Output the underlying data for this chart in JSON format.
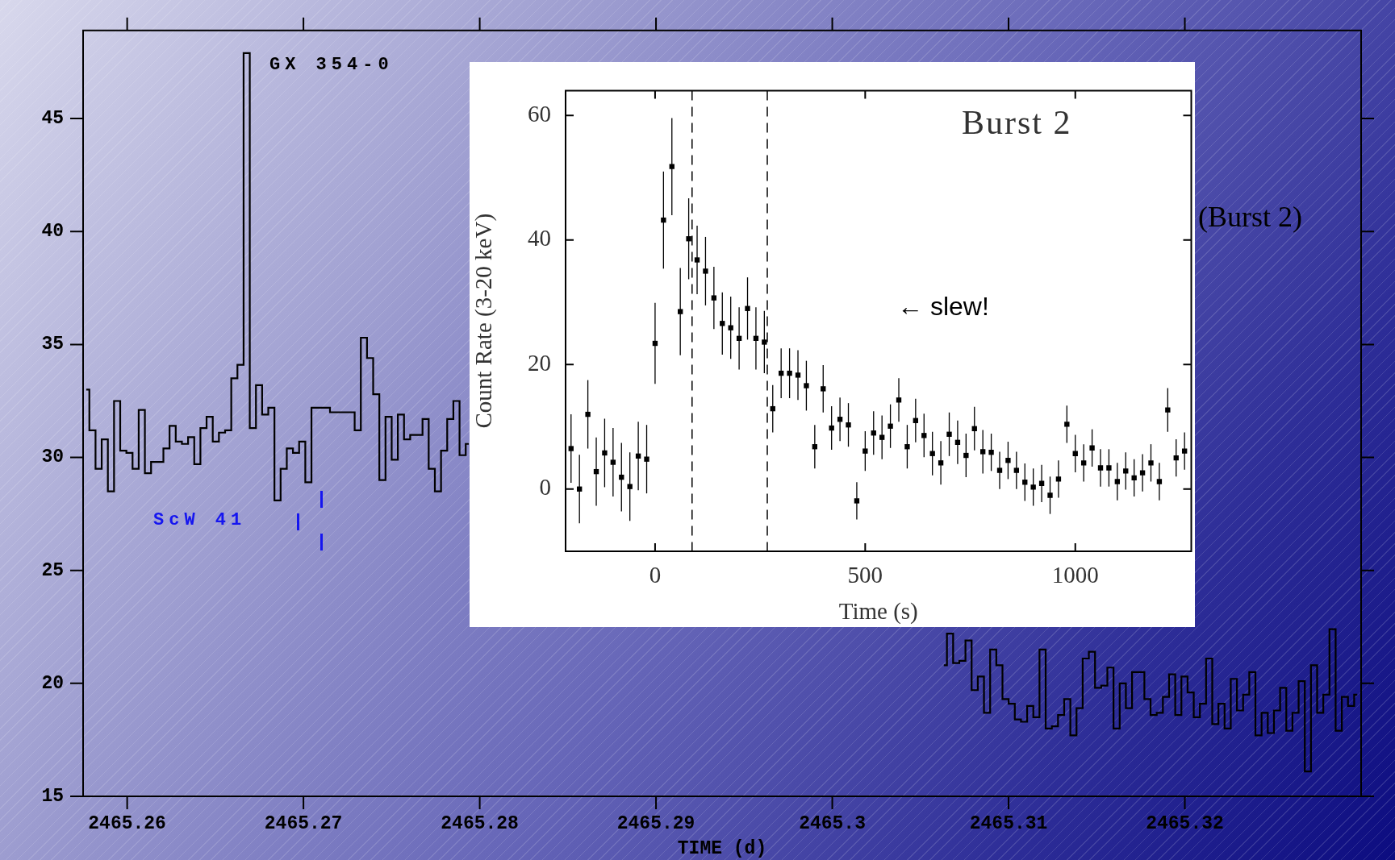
{
  "chart_data": [
    {
      "type": "step",
      "xlabel": "TIME (d)",
      "color": "#000000",
      "x": [
        2465.25768,
        2465.25803,
        2465.25838,
        2465.25873,
        2465.25908,
        2465.25943,
        2465.25978,
        2465.26013,
        2465.26048,
        2465.26083,
        2465.26118,
        2465.26153,
        2465.26188,
        2465.26223,
        2465.26258,
        2465.26293,
        2465.26328,
        2465.26363,
        2465.26398,
        2465.26433,
        2465.26468,
        2465.26503,
        2465.26538,
        2465.26573,
        2465.26608,
        2465.26643,
        2465.26678,
        2465.26713,
        2465.26748,
        2465.26783,
        2465.26818,
        2465.26853,
        2465.26888,
        2465.26923,
        2465.26958,
        2465.26993,
        2465.27028,
        2465.27063,
        2465.27098,
        2465.27133,
        2465.27168,
        2465.27203,
        2465.27238,
        2465.27273,
        2465.27308,
        2465.27343,
        2465.27378,
        2465.27413,
        2465.27448,
        2465.27483,
        2465.27518,
        2465.27553,
        2465.27588,
        2465.27623,
        2465.27658,
        2465.27693,
        2465.27728,
        2465.27763,
        2465.27798,
        2465.27833,
        2465.27868,
        2465.27903,
        2465.27938,
        2465.27973,
        2465.29,
        2465.30633,
        2465.30668,
        2465.30703,
        2465.30738,
        2465.30773,
        2465.30808,
        2465.30843,
        2465.30878,
        2465.30913,
        2465.30948,
        2465.30983,
        2465.31018,
        2465.31053,
        2465.31088,
        2465.31123,
        2465.31158,
        2465.31193,
        2465.31228,
        2465.31263,
        2465.31298,
        2465.31333,
        2465.31368,
        2465.31403,
        2465.31438,
        2465.31473,
        2465.31508,
        2465.31543,
        2465.31578,
        2465.31613,
        2465.31648,
        2465.31683,
        2465.31718,
        2465.31753,
        2465.31788,
        2465.31823,
        2465.31858,
        2465.31893,
        2465.31928,
        2465.31963,
        2465.31998,
        2465.32033,
        2465.32068,
        2465.32103,
        2465.32138,
        2465.32173,
        2465.32208,
        2465.32243,
        2465.32278,
        2465.32313,
        2465.32348,
        2465.32383,
        2465.32418,
        2465.32453,
        2465.32488,
        2465.32523,
        2465.32558,
        2465.32593,
        2465.32628,
        2465.32663,
        2465.32698,
        2465.32733,
        2465.32768,
        2465.32803,
        2465.32838,
        2465.32873,
        2465.32908,
        2465.32943,
        2465.32978
      ],
      "values": [
        33.0,
        31.2,
        29.5,
        30.8,
        28.5,
        32.5,
        30.3,
        30.2,
        29.5,
        32.1,
        29.3,
        29.8,
        29.8,
        30.4,
        31.4,
        30.7,
        30.6,
        30.9,
        29.7,
        31.3,
        31.8,
        30.7,
        31.1,
        31.2,
        33.5,
        34.1,
        47.9,
        31.3,
        33.2,
        31.9,
        32.2,
        28.1,
        29.5,
        30.4,
        30.2,
        30.7,
        28.9,
        32.2,
        32.2,
        32.2,
        32.0,
        32.0,
        32.0,
        32.0,
        31.2,
        35.3,
        34.4,
        32.8,
        29.0,
        31.8,
        29.9,
        31.9,
        30.8,
        31.0,
        31.0,
        31.7,
        29.5,
        28.5,
        30.3,
        31.7,
        32.5,
        30.1,
        30.6,
        null,
        null,
        20.8,
        22.2,
        20.9,
        21.0,
        21.9,
        19.7,
        20.3,
        18.7,
        21.5,
        20.8,
        19.3,
        19.1,
        18.4,
        18.3,
        19.0,
        18.5,
        21.5,
        18.0,
        18.1,
        18.6,
        19.3,
        17.7,
        18.9,
        21.1,
        21.4,
        19.8,
        19.9,
        20.7,
        18.0,
        20.0,
        18.9,
        20.5,
        20.5,
        19.3,
        18.6,
        18.7,
        19.4,
        20.4,
        18.6,
        20.3,
        19.6,
        18.5,
        19.1,
        21.1,
        18.2,
        19.1,
        18.0,
        20.2,
        18.8,
        19.5,
        20.5,
        17.7,
        18.7,
        17.8,
        18.8,
        19.8,
        17.9,
        18.7,
        20.1,
        16.1,
        20.8,
        18.7,
        19.5,
        22.4,
        17.9,
        19.4,
        19.0,
        19.5
      ],
      "xlim": [
        2465.2575,
        2465.33
      ],
      "ylim": [
        15,
        48.9
      ],
      "xticks": [
        2465.26,
        2465.27,
        2465.28,
        2465.29,
        2465.3,
        2465.31,
        2465.32
      ],
      "yticks": [
        15,
        20,
        25,
        30,
        35,
        40,
        45
      ],
      "annotations": [
        "GX 354-0",
        "ScW 41",
        "(Burst 2)"
      ]
    },
    {
      "type": "scatter",
      "xlabel": "Time (s)",
      "ylabel": "Count Rate (3-20 keV)",
      "color": "#000000",
      "marker": "square",
      "x": [
        -200,
        -180,
        -160,
        -140,
        -120,
        -100,
        -80,
        -60,
        -40,
        -20,
        0,
        20,
        40,
        60,
        80,
        100,
        120,
        140,
        160,
        180,
        200,
        220,
        240,
        260,
        280,
        300,
        320,
        340,
        360,
        380,
        400,
        420,
        440,
        460,
        480,
        500,
        520,
        540,
        560,
        580,
        600,
        620,
        640,
        660,
        680,
        700,
        720,
        740,
        760,
        780,
        800,
        820,
        840,
        860,
        880,
        900,
        920,
        940,
        960,
        980,
        1000,
        1020,
        1040,
        1060,
        1080,
        1100,
        1120,
        1140,
        1160,
        1180,
        1200,
        1220,
        1240,
        1260
      ],
      "values": [
        6.5,
        0,
        12,
        2.8,
        5.8,
        4.3,
        1.9,
        0.4,
        5.3,
        4.8,
        23.4,
        43.2,
        51.8,
        28.5,
        40.2,
        36.8,
        35,
        30.7,
        26.6,
        25.9,
        24.2,
        29,
        24.2,
        23.6,
        12.9,
        18.6,
        18.6,
        18.3,
        16.6,
        6.8,
        16.1,
        9.8,
        11.2,
        10.3,
        -1.9,
        6.1,
        9,
        8.3,
        10.1,
        14.3,
        6.8,
        11,
        8.6,
        5.7,
        4.2,
        8.8,
        7.5,
        5.4,
        9.7,
        6,
        5.9,
        3,
        4.6,
        3,
        1.1,
        0.3,
        0.9,
        -1,
        1.6,
        10.4,
        5.7,
        4.2,
        6.6,
        3.4,
        3.4,
        1.2,
        2.9,
        1.8,
        2.6,
        4.2,
        1.2,
        12.7,
        5,
        6.1
      ],
      "errors": [
        5.5,
        5.5,
        5.5,
        5.5,
        5.5,
        5.5,
        5.5,
        5.5,
        5.5,
        5.5,
        6.5,
        7.8,
        7.8,
        7,
        6.5,
        5.5,
        5.5,
        5,
        5,
        5,
        5,
        5,
        5,
        5,
        3.8,
        4,
        4,
        4,
        4,
        3.5,
        3.8,
        3.5,
        3.5,
        3.5,
        3,
        3.2,
        3.5,
        3.5,
        3.5,
        3.5,
        3.5,
        3.5,
        3.5,
        3.5,
        3.5,
        3.5,
        3.5,
        3.5,
        3.5,
        3.5,
        3,
        3,
        3,
        3,
        3,
        3,
        3,
        3,
        3,
        3,
        3,
        3,
        3,
        3,
        3,
        3,
        3,
        3,
        3,
        3,
        3,
        3.5,
        3,
        3
      ],
      "xlim": [
        -213,
        1276
      ],
      "ylim": [
        -10,
        64
      ],
      "xticks": [
        0,
        500,
        1000
      ],
      "yticks": [
        0,
        20,
        40,
        60
      ],
      "ref_lines": [
        {
          "axis": "x",
          "value": 88,
          "line_style": "dashed"
        },
        {
          "axis": "x",
          "value": 267,
          "line_style": "dashed"
        }
      ],
      "annotations": [
        "Burst 2",
        "← slew!"
      ]
    }
  ]
}
